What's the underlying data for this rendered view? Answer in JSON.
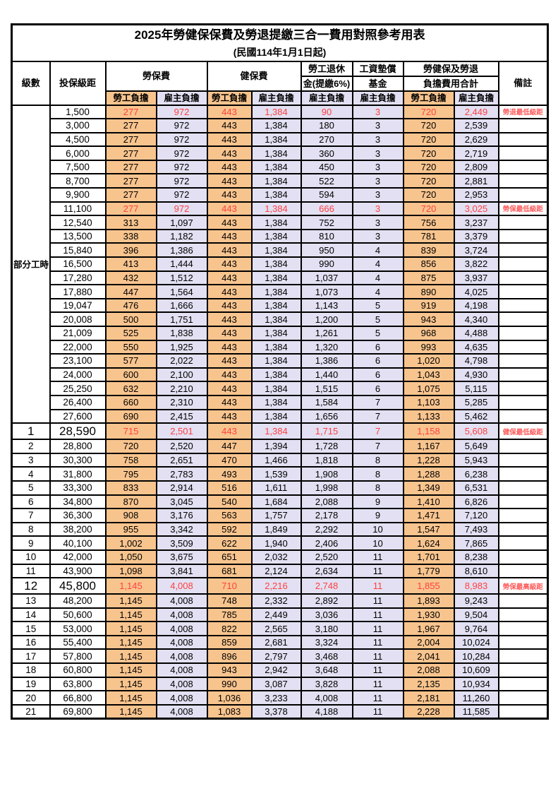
{
  "title": "2025年勞健保保費及勞退提繳三合一費用對照參考用表",
  "subtitle": "(民國114年1月1日起)",
  "colors": {
    "employee_column_bg": "#F8C48E",
    "employer_column_bg": "#E2E0F2",
    "highlight_text": "#FF4040",
    "remark_text": "#FF5A5A",
    "border": "#000000"
  },
  "table": {
    "headers": {
      "level": "級數",
      "bracket": "投保級距",
      "labor_fee": "勞保費",
      "health_fee": "健保費",
      "pension_line1": "勞工退休",
      "pension_line2": "金(提繳6%)",
      "wage_fund_line1": "工資墊償",
      "wage_fund_line2": "基金",
      "total_line1": "勞健保及勞退",
      "total_line2": "負擔費用合計",
      "remark": "備註",
      "sub": [
        "勞工負擔",
        "雇主負擔",
        "勞工負擔",
        "雇主負擔",
        "雇主負擔",
        "雇主負擔",
        "勞工負擔",
        "雇主負擔"
      ]
    },
    "part_time_label": "部分工時",
    "rows": [
      {
        "level": "",
        "bracket": "1,500",
        "labor_emp": "277",
        "labor_er": "972",
        "health_emp": "443",
        "health_er": "1,384",
        "pension_er": "90",
        "fund_er": "3",
        "total_emp": "720",
        "total_er": "2,449",
        "remark": "勞退最低級距",
        "special": true,
        "big": false
      },
      {
        "level": "",
        "bracket": "3,000",
        "labor_emp": "277",
        "labor_er": "972",
        "health_emp": "443",
        "health_er": "1,384",
        "pension_er": "180",
        "fund_er": "3",
        "total_emp": "720",
        "total_er": "2,539",
        "remark": "",
        "special": false,
        "big": false
      },
      {
        "level": "",
        "bracket": "4,500",
        "labor_emp": "277",
        "labor_er": "972",
        "health_emp": "443",
        "health_er": "1,384",
        "pension_er": "270",
        "fund_er": "3",
        "total_emp": "720",
        "total_er": "2,629",
        "remark": "",
        "special": false,
        "big": false
      },
      {
        "level": "",
        "bracket": "6,000",
        "labor_emp": "277",
        "labor_er": "972",
        "health_emp": "443",
        "health_er": "1,384",
        "pension_er": "360",
        "fund_er": "3",
        "total_emp": "720",
        "total_er": "2,719",
        "remark": "",
        "special": false,
        "big": false
      },
      {
        "level": "",
        "bracket": "7,500",
        "labor_emp": "277",
        "labor_er": "972",
        "health_emp": "443",
        "health_er": "1,384",
        "pension_er": "450",
        "fund_er": "3",
        "total_emp": "720",
        "total_er": "2,809",
        "remark": "",
        "special": false,
        "big": false
      },
      {
        "level": "",
        "bracket": "8,700",
        "labor_emp": "277",
        "labor_er": "972",
        "health_emp": "443",
        "health_er": "1,384",
        "pension_er": "522",
        "fund_er": "3",
        "total_emp": "720",
        "total_er": "2,881",
        "remark": "",
        "special": false,
        "big": false
      },
      {
        "level": "",
        "bracket": "9,900",
        "labor_emp": "277",
        "labor_er": "972",
        "health_emp": "443",
        "health_er": "1,384",
        "pension_er": "594",
        "fund_er": "3",
        "total_emp": "720",
        "total_er": "2,953",
        "remark": "",
        "special": false,
        "big": false
      },
      {
        "level": "",
        "bracket": "11,100",
        "labor_emp": "277",
        "labor_er": "972",
        "health_emp": "443",
        "health_er": "1,384",
        "pension_er": "666",
        "fund_er": "3",
        "total_emp": "720",
        "total_er": "3,025",
        "remark": "勞保最低級距",
        "special": true,
        "big": false
      },
      {
        "level": "",
        "bracket": "12,540",
        "labor_emp": "313",
        "labor_er": "1,097",
        "health_emp": "443",
        "health_er": "1,384",
        "pension_er": "752",
        "fund_er": "3",
        "total_emp": "756",
        "total_er": "3,237",
        "remark": "",
        "special": false,
        "big": false
      },
      {
        "level": "",
        "bracket": "13,500",
        "labor_emp": "338",
        "labor_er": "1,182",
        "health_emp": "443",
        "health_er": "1,384",
        "pension_er": "810",
        "fund_er": "3",
        "total_emp": "781",
        "total_er": "3,379",
        "remark": "",
        "special": false,
        "big": false
      },
      {
        "level": "",
        "bracket": "15,840",
        "labor_emp": "396",
        "labor_er": "1,386",
        "health_emp": "443",
        "health_er": "1,384",
        "pension_er": "950",
        "fund_er": "4",
        "total_emp": "839",
        "total_er": "3,724",
        "remark": "",
        "special": false,
        "big": false
      },
      {
        "level": "",
        "bracket": "16,500",
        "labor_emp": "413",
        "labor_er": "1,444",
        "health_emp": "443",
        "health_er": "1,384",
        "pension_er": "990",
        "fund_er": "4",
        "total_emp": "856",
        "total_er": "3,822",
        "remark": "",
        "special": false,
        "big": false
      },
      {
        "level": "",
        "bracket": "17,280",
        "labor_emp": "432",
        "labor_er": "1,512",
        "health_emp": "443",
        "health_er": "1,384",
        "pension_er": "1,037",
        "fund_er": "4",
        "total_emp": "875",
        "total_er": "3,937",
        "remark": "",
        "special": false,
        "big": false
      },
      {
        "level": "",
        "bracket": "17,880",
        "labor_emp": "447",
        "labor_er": "1,564",
        "health_emp": "443",
        "health_er": "1,384",
        "pension_er": "1,073",
        "fund_er": "4",
        "total_emp": "890",
        "total_er": "4,025",
        "remark": "",
        "special": false,
        "big": false
      },
      {
        "level": "",
        "bracket": "19,047",
        "labor_emp": "476",
        "labor_er": "1,666",
        "health_emp": "443",
        "health_er": "1,384",
        "pension_er": "1,143",
        "fund_er": "5",
        "total_emp": "919",
        "total_er": "4,198",
        "remark": "",
        "special": false,
        "big": false
      },
      {
        "level": "",
        "bracket": "20,008",
        "labor_emp": "500",
        "labor_er": "1,751",
        "health_emp": "443",
        "health_er": "1,384",
        "pension_er": "1,200",
        "fund_er": "5",
        "total_emp": "943",
        "total_er": "4,340",
        "remark": "",
        "special": false,
        "big": false
      },
      {
        "level": "",
        "bracket": "21,009",
        "labor_emp": "525",
        "labor_er": "1,838",
        "health_emp": "443",
        "health_er": "1,384",
        "pension_er": "1,261",
        "fund_er": "5",
        "total_emp": "968",
        "total_er": "4,488",
        "remark": "",
        "special": false,
        "big": false
      },
      {
        "level": "",
        "bracket": "22,000",
        "labor_emp": "550",
        "labor_er": "1,925",
        "health_emp": "443",
        "health_er": "1,384",
        "pension_er": "1,320",
        "fund_er": "6",
        "total_emp": "993",
        "total_er": "4,635",
        "remark": "",
        "special": false,
        "big": false
      },
      {
        "level": "",
        "bracket": "23,100",
        "labor_emp": "577",
        "labor_er": "2,022",
        "health_emp": "443",
        "health_er": "1,384",
        "pension_er": "1,386",
        "fund_er": "6",
        "total_emp": "1,020",
        "total_er": "4,798",
        "remark": "",
        "special": false,
        "big": false
      },
      {
        "level": "",
        "bracket": "24,000",
        "labor_emp": "600",
        "labor_er": "2,100",
        "health_emp": "443",
        "health_er": "1,384",
        "pension_er": "1,440",
        "fund_er": "6",
        "total_emp": "1,043",
        "total_er": "4,930",
        "remark": "",
        "special": false,
        "big": false
      },
      {
        "level": "",
        "bracket": "25,250",
        "labor_emp": "632",
        "labor_er": "2,210",
        "health_emp": "443",
        "health_er": "1,384",
        "pension_er": "1,515",
        "fund_er": "6",
        "total_emp": "1,075",
        "total_er": "5,115",
        "remark": "",
        "special": false,
        "big": false
      },
      {
        "level": "",
        "bracket": "26,400",
        "labor_emp": "660",
        "labor_er": "2,310",
        "health_emp": "443",
        "health_er": "1,384",
        "pension_er": "1,584",
        "fund_er": "7",
        "total_emp": "1,103",
        "total_er": "5,285",
        "remark": "",
        "special": false,
        "big": false
      },
      {
        "level": "",
        "bracket": "27,600",
        "labor_emp": "690",
        "labor_er": "2,415",
        "health_emp": "443",
        "health_er": "1,384",
        "pension_er": "1,656",
        "fund_er": "7",
        "total_emp": "1,133",
        "total_er": "5,462",
        "remark": "",
        "special": false,
        "big": false
      },
      {
        "level": "1",
        "bracket": "28,590",
        "labor_emp": "715",
        "labor_er": "2,501",
        "health_emp": "443",
        "health_er": "1,384",
        "pension_er": "1,715",
        "fund_er": "7",
        "total_emp": "1,158",
        "total_er": "5,608",
        "remark": "健保最低級距",
        "special": true,
        "big": true
      },
      {
        "level": "2",
        "bracket": "28,800",
        "labor_emp": "720",
        "labor_er": "2,520",
        "health_emp": "447",
        "health_er": "1,394",
        "pension_er": "1,728",
        "fund_er": "7",
        "total_emp": "1,167",
        "total_er": "5,649",
        "remark": "",
        "special": false,
        "big": false
      },
      {
        "level": "3",
        "bracket": "30,300",
        "labor_emp": "758",
        "labor_er": "2,651",
        "health_emp": "470",
        "health_er": "1,466",
        "pension_er": "1,818",
        "fund_er": "8",
        "total_emp": "1,228",
        "total_er": "5,943",
        "remark": "",
        "special": false,
        "big": false
      },
      {
        "level": "4",
        "bracket": "31,800",
        "labor_emp": "795",
        "labor_er": "2,783",
        "health_emp": "493",
        "health_er": "1,539",
        "pension_er": "1,908",
        "fund_er": "8",
        "total_emp": "1,288",
        "total_er": "6,238",
        "remark": "",
        "special": false,
        "big": false
      },
      {
        "level": "5",
        "bracket": "33,300",
        "labor_emp": "833",
        "labor_er": "2,914",
        "health_emp": "516",
        "health_er": "1,611",
        "pension_er": "1,998",
        "fund_er": "8",
        "total_emp": "1,349",
        "total_er": "6,531",
        "remark": "",
        "special": false,
        "big": false
      },
      {
        "level": "6",
        "bracket": "34,800",
        "labor_emp": "870",
        "labor_er": "3,045",
        "health_emp": "540",
        "health_er": "1,684",
        "pension_er": "2,088",
        "fund_er": "9",
        "total_emp": "1,410",
        "total_er": "6,826",
        "remark": "",
        "special": false,
        "big": false
      },
      {
        "level": "7",
        "bracket": "36,300",
        "labor_emp": "908",
        "labor_er": "3,176",
        "health_emp": "563",
        "health_er": "1,757",
        "pension_er": "2,178",
        "fund_er": "9",
        "total_emp": "1,471",
        "total_er": "7,120",
        "remark": "",
        "special": false,
        "big": false
      },
      {
        "level": "8",
        "bracket": "38,200",
        "labor_emp": "955",
        "labor_er": "3,342",
        "health_emp": "592",
        "health_er": "1,849",
        "pension_er": "2,292",
        "fund_er": "10",
        "total_emp": "1,547",
        "total_er": "7,493",
        "remark": "",
        "special": false,
        "big": false
      },
      {
        "level": "9",
        "bracket": "40,100",
        "labor_emp": "1,002",
        "labor_er": "3,509",
        "health_emp": "622",
        "health_er": "1,940",
        "pension_er": "2,406",
        "fund_er": "10",
        "total_emp": "1,624",
        "total_er": "7,865",
        "remark": "",
        "special": false,
        "big": false
      },
      {
        "level": "10",
        "bracket": "42,000",
        "labor_emp": "1,050",
        "labor_er": "3,675",
        "health_emp": "651",
        "health_er": "2,032",
        "pension_er": "2,520",
        "fund_er": "11",
        "total_emp": "1,701",
        "total_er": "8,238",
        "remark": "",
        "special": false,
        "big": false
      },
      {
        "level": "11",
        "bracket": "43,900",
        "labor_emp": "1,098",
        "labor_er": "3,841",
        "health_emp": "681",
        "health_er": "2,124",
        "pension_er": "2,634",
        "fund_er": "11",
        "total_emp": "1,779",
        "total_er": "8,610",
        "remark": "",
        "special": false,
        "big": false
      },
      {
        "level": "12",
        "bracket": "45,800",
        "labor_emp": "1,145",
        "labor_er": "4,008",
        "health_emp": "710",
        "health_er": "2,216",
        "pension_er": "2,748",
        "fund_er": "11",
        "total_emp": "1,855",
        "total_er": "8,983",
        "remark": "勞保最高級距",
        "special": true,
        "big": true
      },
      {
        "level": "13",
        "bracket": "48,200",
        "labor_emp": "1,145",
        "labor_er": "4,008",
        "health_emp": "748",
        "health_er": "2,332",
        "pension_er": "2,892",
        "fund_er": "11",
        "total_emp": "1,893",
        "total_er": "9,243",
        "remark": "",
        "special": false,
        "big": false
      },
      {
        "level": "14",
        "bracket": "50,600",
        "labor_emp": "1,145",
        "labor_er": "4,008",
        "health_emp": "785",
        "health_er": "2,449",
        "pension_er": "3,036",
        "fund_er": "11",
        "total_emp": "1,930",
        "total_er": "9,504",
        "remark": "",
        "special": false,
        "big": false
      },
      {
        "level": "15",
        "bracket": "53,000",
        "labor_emp": "1,145",
        "labor_er": "4,008",
        "health_emp": "822",
        "health_er": "2,565",
        "pension_er": "3,180",
        "fund_er": "11",
        "total_emp": "1,967",
        "total_er": "9,764",
        "remark": "",
        "special": false,
        "big": false
      },
      {
        "level": "16",
        "bracket": "55,400",
        "labor_emp": "1,145",
        "labor_er": "4,008",
        "health_emp": "859",
        "health_er": "2,681",
        "pension_er": "3,324",
        "fund_er": "11",
        "total_emp": "2,004",
        "total_er": "10,024",
        "remark": "",
        "special": false,
        "big": false
      },
      {
        "level": "17",
        "bracket": "57,800",
        "labor_emp": "1,145",
        "labor_er": "4,008",
        "health_emp": "896",
        "health_er": "2,797",
        "pension_er": "3,468",
        "fund_er": "11",
        "total_emp": "2,041",
        "total_er": "10,284",
        "remark": "",
        "special": false,
        "big": false
      },
      {
        "level": "18",
        "bracket": "60,800",
        "labor_emp": "1,145",
        "labor_er": "4,008",
        "health_emp": "943",
        "health_er": "2,942",
        "pension_er": "3,648",
        "fund_er": "11",
        "total_emp": "2,088",
        "total_er": "10,609",
        "remark": "",
        "special": false,
        "big": false
      },
      {
        "level": "19",
        "bracket": "63,800",
        "labor_emp": "1,145",
        "labor_er": "4,008",
        "health_emp": "990",
        "health_er": "3,087",
        "pension_er": "3,828",
        "fund_er": "11",
        "total_emp": "2,135",
        "total_er": "10,934",
        "remark": "",
        "special": false,
        "big": false
      },
      {
        "level": "20",
        "bracket": "66,800",
        "labor_emp": "1,145",
        "labor_er": "4,008",
        "health_emp": "1,036",
        "health_er": "3,233",
        "pension_er": "4,008",
        "fund_er": "11",
        "total_emp": "2,181",
        "total_er": "11,260",
        "remark": "",
        "special": false,
        "big": false
      },
      {
        "level": "21",
        "bracket": "69,800",
        "labor_emp": "1,145",
        "labor_er": "4,008",
        "health_emp": "1,083",
        "health_er": "3,378",
        "pension_er": "4,188",
        "fund_er": "11",
        "total_emp": "2,228",
        "total_er": "11,585",
        "remark": "",
        "special": false,
        "big": false
      }
    ]
  }
}
